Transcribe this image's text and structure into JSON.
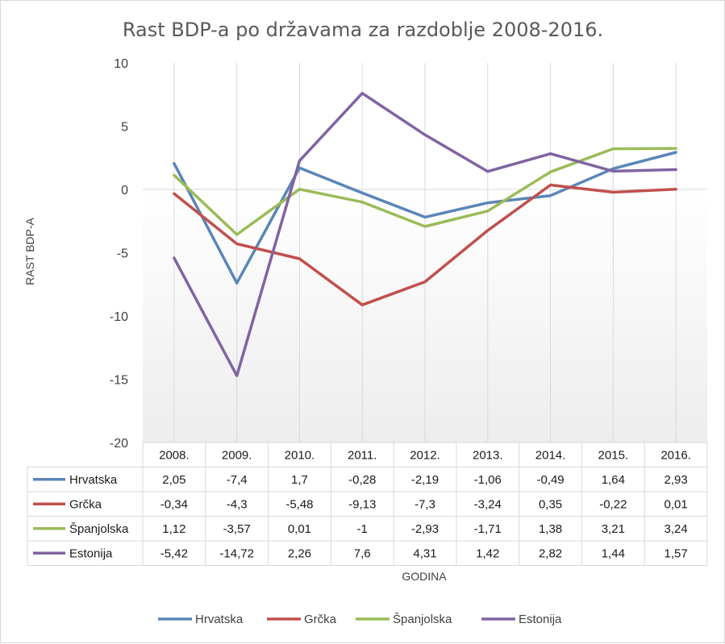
{
  "chart_data": {
    "type": "line",
    "title": "Rast BDP-a po državama za razdoblje 2008-2016.",
    "xlabel": "GODINA",
    "ylabel": "RAST BDP-A",
    "ylim": [
      -20,
      10
    ],
    "yticks": [
      "10",
      "5",
      "0",
      "-5",
      "-10",
      "-15",
      "-20"
    ],
    "grid": "vertical",
    "legend_position": "bottom",
    "categories": [
      "2008.",
      "2009.",
      "2010.",
      "2011.",
      "2012.",
      "2013.",
      "2014.",
      "2015.",
      "2016."
    ],
    "series": [
      {
        "name": "Hrvatska",
        "color": "#5a86b8",
        "values": [
          2.05,
          -7.4,
          1.7,
          -0.28,
          -2.19,
          -1.06,
          -0.49,
          1.64,
          2.93
        ],
        "labels": [
          "2,05",
          "-7,4",
          "1,7",
          "-0,28",
          "-2,19",
          "-1,06",
          "-0,49",
          "1,64",
          "2,93"
        ]
      },
      {
        "name": "Grčka",
        "color": "#c0504d",
        "values": [
          -0.34,
          -4.3,
          -5.48,
          -9.13,
          -7.3,
          -3.24,
          0.35,
          -0.22,
          0.01
        ],
        "labels": [
          "-0,34",
          "-4,3",
          "-5,48",
          "-9,13",
          "-7,3",
          "-3,24",
          "0,35",
          "-0,22",
          "0,01"
        ]
      },
      {
        "name": "Španjolska",
        "color": "#9bbb59",
        "values": [
          1.12,
          -3.57,
          0.01,
          -1,
          -2.93,
          -1.71,
          1.38,
          3.21,
          3.24
        ],
        "labels": [
          "1,12",
          "-3,57",
          "0,01",
          "-1",
          "-2,93",
          "-1,71",
          "1,38",
          "3,21",
          "3,24"
        ]
      },
      {
        "name": "Estonija",
        "color": "#8064a2",
        "values": [
          -5.42,
          -14.72,
          2.26,
          7.6,
          4.31,
          1.42,
          2.82,
          1.44,
          1.57
        ],
        "labels": [
          "-5,42",
          "-14,72",
          "2,26",
          "7,6",
          "4,31",
          "1,42",
          "2,82",
          "1,44",
          "1,57"
        ]
      }
    ]
  }
}
